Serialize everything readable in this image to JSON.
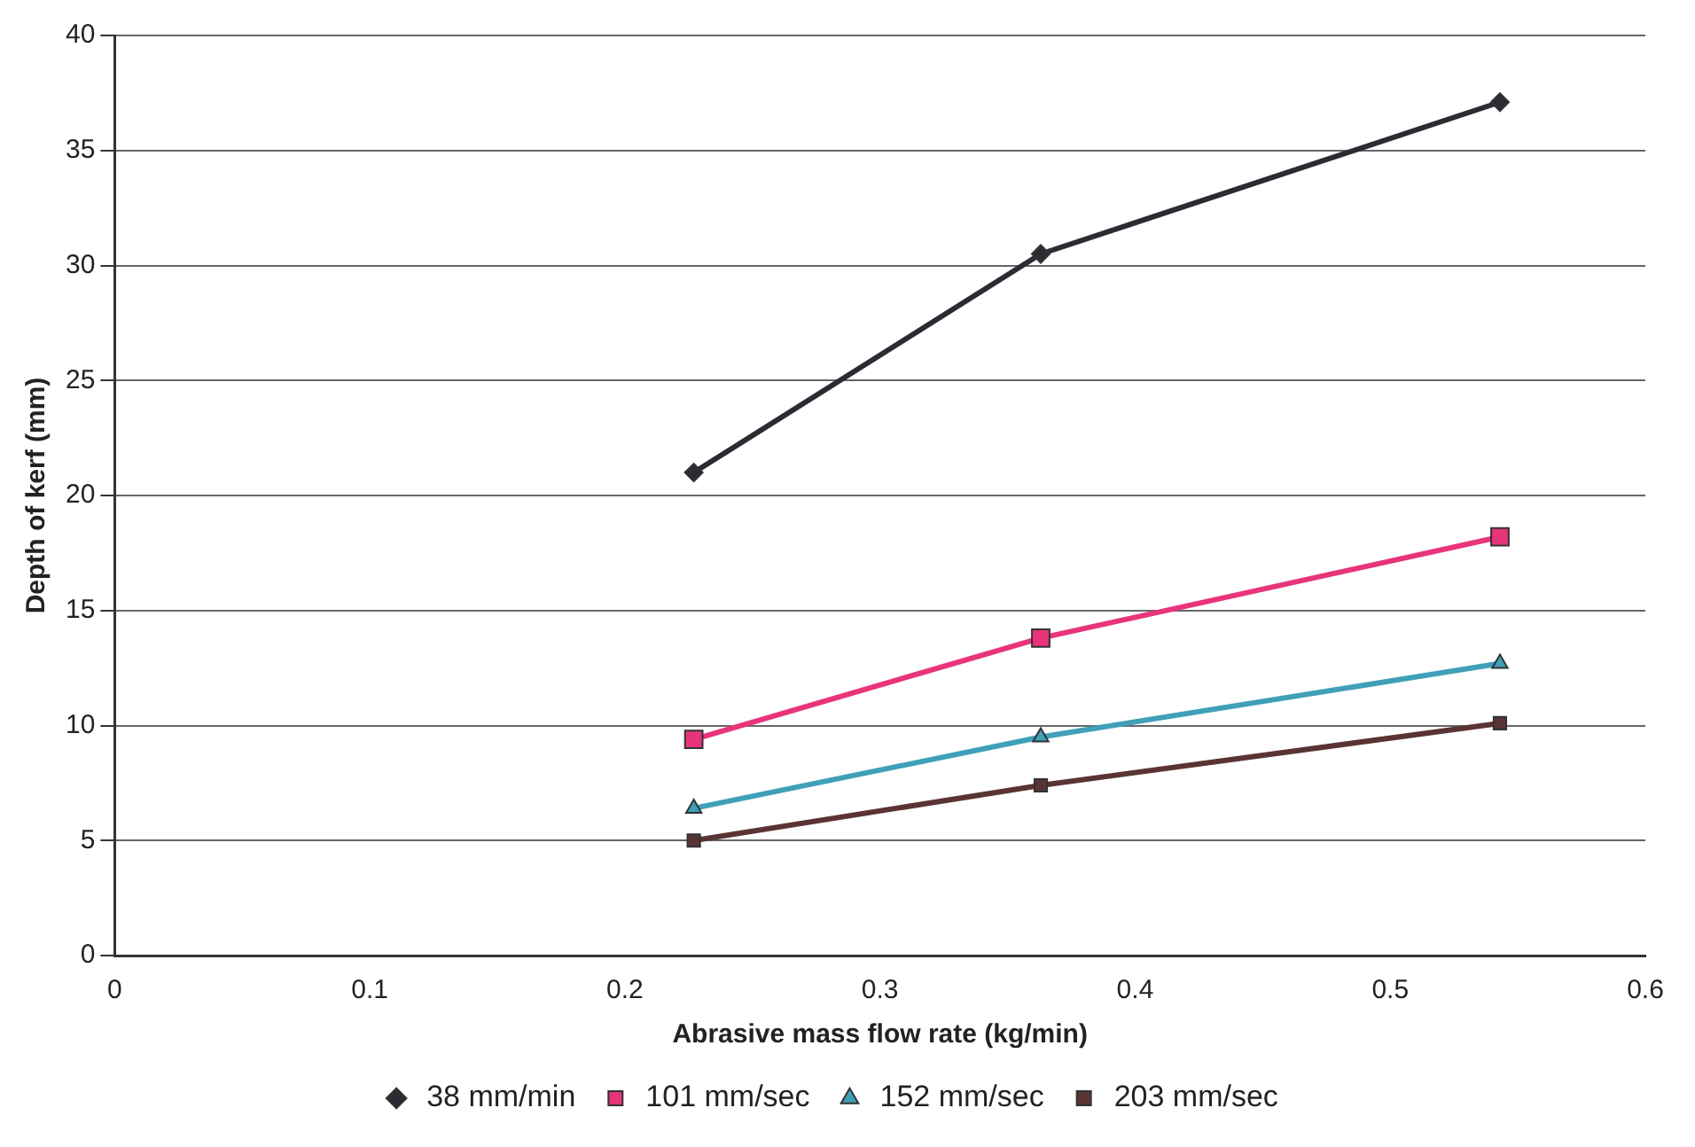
{
  "chart_data": {
    "type": "line",
    "xlabel": "Abrasive mass flow rate (kg/min)",
    "ylabel": "Depth of kerf (mm)",
    "x": [
      0.227,
      0.363,
      0.543
    ],
    "series": [
      {
        "name": "38 mm/min",
        "color": "#2b2b33",
        "marker": "diamond",
        "values": [
          21.0,
          30.5,
          37.1
        ]
      },
      {
        "name": "101 mm/sec",
        "color": "#e8347a",
        "marker": "square",
        "values": [
          9.4,
          13.8,
          18.2
        ]
      },
      {
        "name": "152 mm/sec",
        "color": "#3fa0b8",
        "marker": "triangle",
        "values": [
          6.4,
          9.5,
          12.7
        ]
      },
      {
        "name": "203 mm/sec",
        "color": "#5a3434",
        "marker": "square",
        "values": [
          5.0,
          7.4,
          10.1
        ]
      }
    ],
    "xlim": [
      0,
      0.6
    ],
    "xticks": [
      0,
      0.1,
      0.2,
      0.3,
      0.4,
      0.5,
      0.6
    ],
    "ylim": [
      0,
      40
    ],
    "yticks": [
      0,
      5,
      10,
      15,
      20,
      25,
      30,
      35,
      40
    ],
    "grid": "y",
    "legend": "bottom"
  }
}
